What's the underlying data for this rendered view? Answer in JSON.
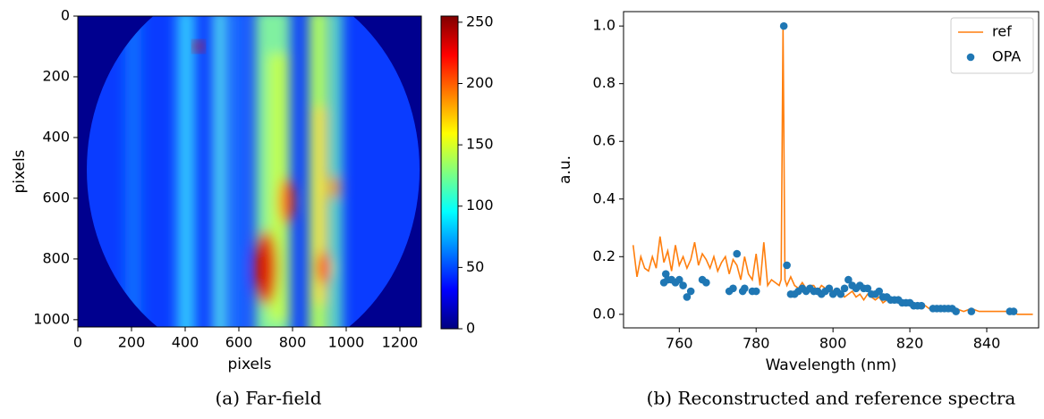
{
  "chart_data": [
    {
      "type": "image",
      "caption": "(a) Far-field",
      "xlabel": "pixels",
      "ylabel": "pixels",
      "xlim": [
        0,
        1280
      ],
      "ylim": [
        1024,
        0
      ],
      "xticks": [
        0,
        200,
        400,
        600,
        800,
        1000,
        1200
      ],
      "yticks": [
        0,
        200,
        400,
        600,
        800,
        1000
      ],
      "clim": [
        0,
        255
      ],
      "cticks": [
        0,
        50,
        100,
        150,
        200,
        250
      ]
    },
    {
      "type": "line",
      "caption": "(b) Reconstructed and reference spectra",
      "xlabel": "Wavelength (nm)",
      "ylabel": "a.u.",
      "xlim": [
        745.5,
        853.5
      ],
      "ylim": [
        -0.047,
        1.05
      ],
      "xticks": [
        760,
        780,
        800,
        820,
        840
      ],
      "yticks": [
        {
          "value": 0,
          "label": "0.0"
        },
        0.2,
        0.4,
        0.6,
        0.8,
        {
          "value": 1,
          "label": "1.0"
        }
      ],
      "legend": "upper right",
      "series": [
        {
          "name": "ref",
          "type": "line",
          "color": "#ff7f0e",
          "x": [
            748,
            749,
            750,
            751,
            752,
            753,
            754,
            755,
            756,
            757,
            758,
            759,
            760,
            761,
            762,
            763,
            764,
            765,
            766,
            767,
            768,
            769,
            770,
            771,
            772,
            773,
            774,
            775,
            776,
            777,
            778,
            779,
            780,
            781,
            782,
            783,
            784,
            785,
            786,
            786.5,
            787,
            787.5,
            788,
            789,
            790,
            791,
            792,
            793,
            794,
            795,
            796,
            797,
            798,
            799,
            800,
            801,
            802,
            803,
            804,
            805,
            806,
            807,
            808,
            809,
            810,
            811,
            812,
            813,
            814,
            815,
            816,
            817,
            818,
            819,
            820,
            821,
            822,
            823,
            824,
            825,
            826,
            827,
            828,
            830,
            832,
            834,
            836,
            838,
            840,
            842,
            844,
            846,
            848,
            850,
            852
          ],
          "values": [
            0.24,
            0.13,
            0.2,
            0.16,
            0.15,
            0.2,
            0.16,
            0.27,
            0.18,
            0.22,
            0.15,
            0.24,
            0.17,
            0.2,
            0.16,
            0.19,
            0.25,
            0.17,
            0.21,
            0.19,
            0.16,
            0.2,
            0.15,
            0.18,
            0.2,
            0.14,
            0.19,
            0.17,
            0.12,
            0.2,
            0.14,
            0.12,
            0.21,
            0.1,
            0.25,
            0.1,
            0.12,
            0.11,
            0.1,
            0.12,
            1.0,
            0.12,
            0.1,
            0.13,
            0.1,
            0.09,
            0.11,
            0.09,
            0.1,
            0.1,
            0.08,
            0.1,
            0.09,
            0.1,
            0.08,
            0.07,
            0.08,
            0.06,
            0.07,
            0.08,
            0.06,
            0.07,
            0.05,
            0.07,
            0.06,
            0.05,
            0.06,
            0.04,
            0.05,
            0.05,
            0.04,
            0.06,
            0.04,
            0.05,
            0.04,
            0.03,
            0.04,
            0.03,
            0.03,
            0.02,
            0.03,
            0.02,
            0.02,
            0.02,
            0.02,
            0.01,
            0.02,
            0.01,
            0.01,
            0.01,
            0.01,
            0.01,
            0.0,
            0.0,
            0.0
          ]
        },
        {
          "name": "OPA",
          "type": "scatter",
          "color": "#1f77b4",
          "x": [
            756,
            756.5,
            757,
            758,
            759,
            760,
            761,
            762,
            763,
            766,
            767,
            773,
            774,
            775,
            776.5,
            777,
            779,
            780,
            787.2,
            788,
            789,
            790,
            791,
            792,
            793,
            794,
            795,
            796,
            797,
            798,
            799,
            800,
            801,
            802,
            803,
            804,
            805,
            806,
            807,
            808,
            809,
            810,
            811,
            812,
            813,
            814,
            815,
            816,
            817,
            818,
            819,
            820,
            821,
            822,
            823,
            826,
            827,
            828,
            829,
            830,
            831,
            832,
            836,
            846,
            847
          ],
          "values": [
            0.11,
            0.14,
            0.12,
            0.12,
            0.11,
            0.12,
            0.1,
            0.06,
            0.08,
            0.12,
            0.11,
            0.08,
            0.09,
            0.21,
            0.08,
            0.09,
            0.08,
            0.08,
            1.0,
            0.17,
            0.07,
            0.07,
            0.08,
            0.09,
            0.08,
            0.09,
            0.08,
            0.08,
            0.07,
            0.08,
            0.09,
            0.07,
            0.08,
            0.07,
            0.09,
            0.12,
            0.1,
            0.09,
            0.1,
            0.09,
            0.09,
            0.07,
            0.07,
            0.08,
            0.06,
            0.06,
            0.05,
            0.05,
            0.05,
            0.04,
            0.04,
            0.04,
            0.03,
            0.03,
            0.03,
            0.02,
            0.02,
            0.02,
            0.02,
            0.02,
            0.02,
            0.01,
            0.01,
            0.01,
            0.01
          ]
        }
      ]
    }
  ]
}
